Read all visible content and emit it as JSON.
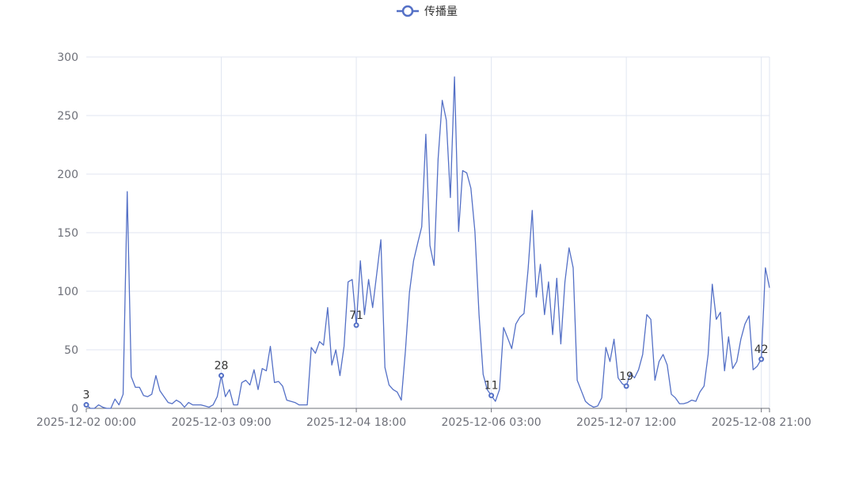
{
  "chart_data": {
    "type": "line",
    "title": "",
    "legend": {
      "entries": [
        "传播量"
      ],
      "placement": "top-center"
    },
    "xlabel": "",
    "ylabel": "",
    "ylim": [
      0,
      300
    ],
    "yticks": [
      0,
      50,
      100,
      150,
      200,
      250,
      300
    ],
    "grid": true,
    "x_interval": "1 hour",
    "xtick_labels": [
      "2025-12-02 00:00",
      "2025-12-03 09:00",
      "2025-12-04 18:00",
      "2025-12-06 03:00",
      "2025-12-07 12:00",
      "2025-12-08 21:00"
    ],
    "xtick_every": 33,
    "labeled_indices": [
      0,
      33,
      66,
      99,
      132,
      165
    ],
    "series": [
      {
        "name": "传播量",
        "color": "#5470c6",
        "values": [
          3,
          0,
          0,
          3,
          1,
          0,
          0,
          8,
          3,
          12,
          185,
          27,
          18,
          18,
          11,
          10,
          12,
          28,
          15,
          10,
          5,
          4,
          7,
          5,
          1,
          5,
          3,
          3,
          3,
          2,
          1,
          3,
          10,
          28,
          10,
          16,
          3,
          3,
          22,
          24,
          20,
          33,
          16,
          34,
          32,
          53,
          22,
          23,
          19,
          7,
          6,
          5,
          3,
          3,
          3,
          52,
          47,
          57,
          54,
          86,
          37,
          50,
          28,
          53,
          108,
          110,
          71,
          126,
          80,
          110,
          86,
          115,
          144,
          35,
          20,
          16,
          14,
          7,
          49,
          99,
          126,
          141,
          155,
          234,
          139,
          122,
          213,
          263,
          246,
          180,
          283,
          151,
          203,
          201,
          188,
          151,
          80,
          29,
          16,
          11,
          6,
          16,
          69,
          60,
          51,
          72,
          78,
          81,
          119,
          169,
          95,
          123,
          80,
          108,
          63,
          111,
          55,
          108,
          137,
          120,
          24,
          15,
          6,
          3,
          1,
          2,
          9,
          52,
          40,
          59,
          26,
          21,
          19,
          30,
          26,
          33,
          46,
          80,
          76,
          24,
          40,
          46,
          37,
          12,
          9,
          4,
          4,
          5,
          7,
          6,
          14,
          19,
          46,
          106,
          76,
          82,
          32,
          61,
          34,
          40,
          59,
          72,
          79,
          33,
          36,
          42,
          120,
          103
        ]
      }
    ]
  },
  "colors": {
    "grid": "#e0e6f1",
    "axis": "#6e7079",
    "label": "#333333"
  }
}
